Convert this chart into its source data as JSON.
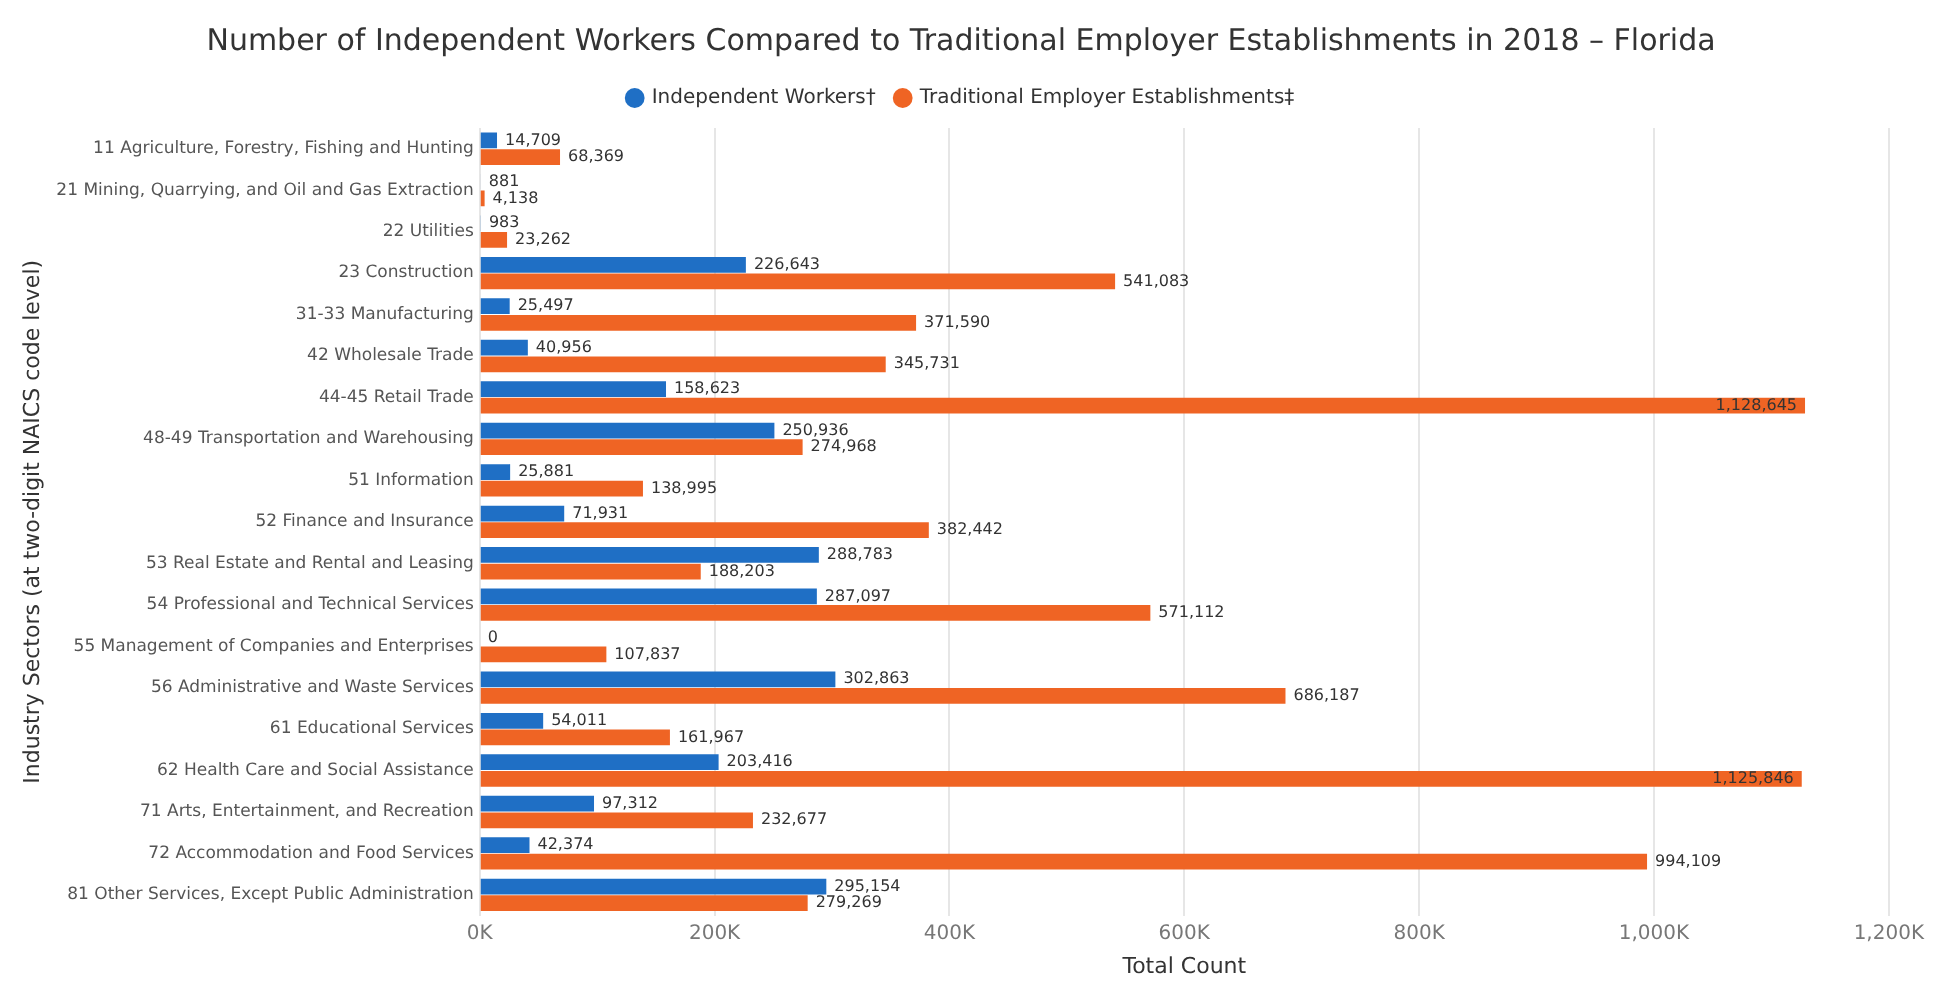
{
  "chart_data": {
    "type": "bar",
    "orientation": "horizontal",
    "title": "Number of Independent Workers Compared to Traditional Employer Establishments in 2018 – Florida",
    "xlabel": "Total Count",
    "ylabel": "Industry Sectors (at two-digit NAICS code level)",
    "categories": [
      "11 Agriculture, Forestry, Fishing and Hunting",
      "21 Mining, Quarrying, and Oil and Gas Extraction",
      "22 Utilities",
      "23 Construction",
      "31-33 Manufacturing",
      "42 Wholesale Trade",
      "44-45 Retail Trade",
      "48-49 Transportation and Warehousing",
      "51 Information",
      "52 Finance and Insurance",
      "53 Real Estate and Rental and Leasing",
      "54 Professional and Technical Services",
      "55 Management of Companies and Enterprises",
      "56 Administrative and Waste Services",
      "61 Educational Services",
      "62 Health Care and Social Assistance",
      "71 Arts, Entertainment, and Recreation",
      "72 Accommodation and Food Services",
      "81 Other Services, Except Public Administration"
    ],
    "series": [
      {
        "name": "Independent Workers†",
        "color": "#1f6fc5",
        "values": [
          14709,
          881,
          983,
          226643,
          25497,
          40956,
          158623,
          250936,
          25881,
          71931,
          288783,
          287097,
          0,
          302863,
          54011,
          203416,
          97312,
          42374,
          295154
        ],
        "value_labels": [
          "14,709",
          "881",
          "983",
          "226,643",
          "25,497",
          "40,956",
          "158,623",
          "250,936",
          "25,881",
          "71,931",
          "288,783",
          "287,097",
          "0",
          "302,863",
          "54,011",
          "203,416",
          "97,312",
          "42,374",
          "295,154"
        ]
      },
      {
        "name": "Traditional Employer Establishments‡",
        "color": "#ef6424",
        "values": [
          68369,
          4138,
          23262,
          541083,
          371590,
          345731,
          1128645,
          274968,
          138995,
          382442,
          188203,
          571112,
          107837,
          686187,
          161967,
          1125846,
          232677,
          994109,
          279269
        ],
        "value_labels": [
          "68,369",
          "4,138",
          "23,262",
          "541,083",
          "371,590",
          "345,731",
          "1,128,645",
          "274,968",
          "138,995",
          "382,442",
          "188,203",
          "571,112",
          "107,837",
          "686,187",
          "161,967",
          "1,125,846",
          "232,677",
          "994,109",
          "279,269"
        ]
      }
    ],
    "xlim": [
      0,
      1200000
    ],
    "xticks": [
      {
        "value": 0,
        "label": "0K"
      },
      {
        "value": 200000,
        "label": "200K"
      },
      {
        "value": 400000,
        "label": "400K"
      },
      {
        "value": 600000,
        "label": "600K"
      },
      {
        "value": 800000,
        "label": "800K"
      },
      {
        "value": 1000000,
        "label": "1,000K"
      },
      {
        "value": 1200000,
        "label": "1,200K"
      }
    ],
    "grid": "x",
    "legend": "top"
  }
}
